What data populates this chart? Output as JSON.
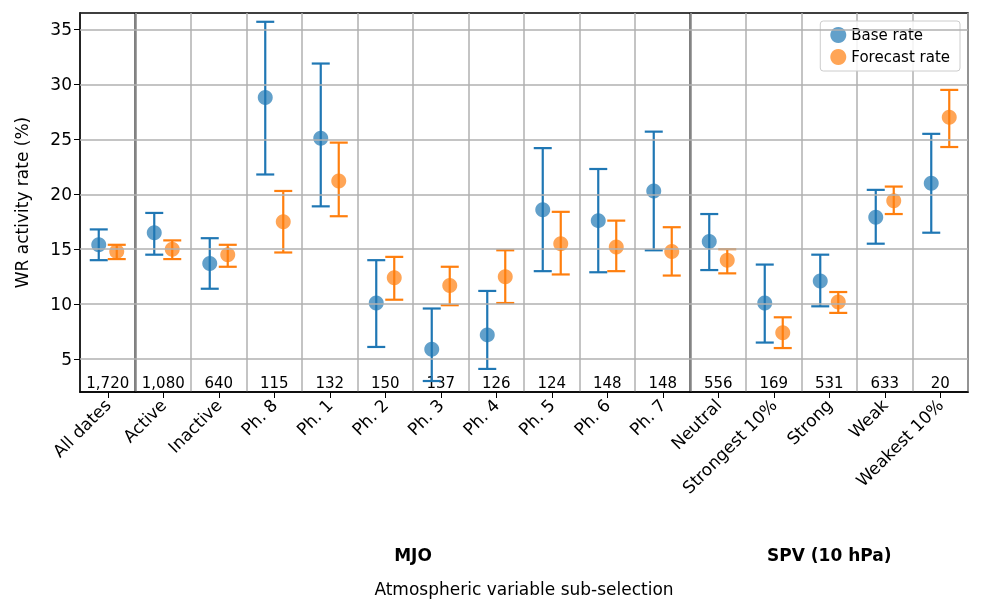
{
  "chart_data": {
    "type": "scatter",
    "xlabel": "Atmospheric variable sub-selection",
    "ylabel": "WR activity rate (%)",
    "categories": [
      "All dates",
      "Active",
      "Inactive",
      "Ph. 8",
      "Ph. 1",
      "Ph. 2",
      "Ph. 3",
      "Ph. 4",
      "Ph. 5",
      "Ph. 6",
      "Ph. 7",
      "Neutral",
      "Strongest 10%",
      "Strong",
      "Weak",
      "Weakest 10%"
    ],
    "series": [
      {
        "name": "Base rate",
        "color": "#1f77b4",
        "values": [
          15.4,
          16.5,
          13.7,
          28.8,
          25.1,
          10.1,
          5.9,
          7.2,
          18.6,
          17.6,
          20.3,
          15.7,
          10.1,
          12.1,
          17.9,
          21.0
        ],
        "errors": [
          [
            14.0,
            16.8
          ],
          [
            14.5,
            18.3
          ],
          [
            11.4,
            16.0
          ],
          [
            21.8,
            35.7
          ],
          [
            18.9,
            31.9
          ],
          [
            6.1,
            14.0
          ],
          [
            3.0,
            9.6
          ],
          [
            4.1,
            11.2
          ],
          [
            13.0,
            24.2
          ],
          [
            12.9,
            22.3
          ],
          [
            14.9,
            25.7
          ],
          [
            13.1,
            18.2
          ],
          [
            6.5,
            13.6
          ],
          [
            9.8,
            14.5
          ],
          [
            15.5,
            20.4
          ],
          [
            16.5,
            25.5
          ]
        ]
      },
      {
        "name": "Forecast rate",
        "color": "#ff7f0e",
        "values": [
          14.8,
          15.0,
          14.5,
          17.5,
          21.2,
          12.4,
          11.7,
          12.5,
          15.5,
          15.2,
          14.8,
          14.0,
          7.4,
          10.2,
          19.4,
          27.0
        ],
        "errors": [
          [
            14.1,
            15.4
          ],
          [
            14.1,
            15.8
          ],
          [
            13.4,
            15.4
          ],
          [
            14.7,
            20.3
          ],
          [
            18.0,
            24.7
          ],
          [
            10.4,
            14.3
          ],
          [
            9.9,
            13.4
          ],
          [
            10.1,
            14.9
          ],
          [
            12.7,
            18.4
          ],
          [
            13.0,
            17.6
          ],
          [
            12.6,
            17.0
          ],
          [
            12.8,
            15.0
          ],
          [
            6.0,
            8.8
          ],
          [
            9.2,
            11.1
          ],
          [
            18.2,
            20.7
          ],
          [
            24.3,
            29.5
          ]
        ]
      }
    ],
    "ylim": [
      2,
      36.5
    ],
    "yticks": [
      5,
      10,
      15,
      20,
      25,
      30,
      35
    ],
    "grid": true,
    "legend": "top right",
    "marker": "circle",
    "annotations": [
      "1,720",
      "1,080",
      "640",
      "115",
      "132",
      "150",
      "137",
      "126",
      "124",
      "148",
      "148",
      "556",
      "169",
      "531",
      "633",
      "20",
      "MJO",
      "SPV (10 hPa)"
    ]
  }
}
